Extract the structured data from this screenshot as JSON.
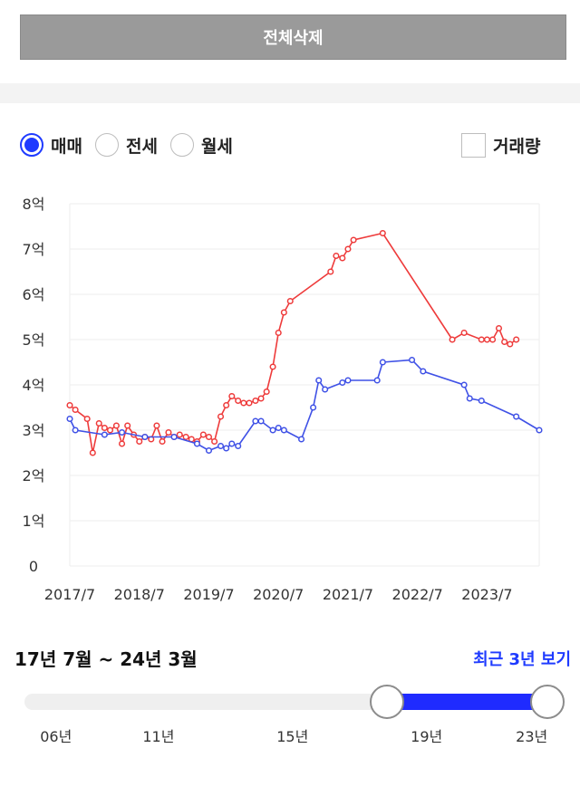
{
  "top": {
    "delete_all_label": "전체삭제"
  },
  "tabs": [
    {
      "label": "매매",
      "selected": true
    },
    {
      "label": "전세",
      "selected": false
    },
    {
      "label": "월세",
      "selected": false
    }
  ],
  "volume_toggle": {
    "label": "거래량",
    "checked": false
  },
  "colors": {
    "sale": "#ee3b3b",
    "jeonse": "#3f51e6",
    "accent": "#1f3bff",
    "grid": "#eeeeee"
  },
  "chart_data": {
    "type": "line",
    "title": "",
    "xlabel": "",
    "ylabel": "",
    "ylim": [
      0,
      8
    ],
    "y_ticks": [
      "0",
      "1억",
      "2억",
      "3억",
      "4억",
      "5억",
      "6억",
      "7억",
      "8억"
    ],
    "xlim": [
      2017.5,
      2024.25
    ],
    "x_ticks": [
      {
        "x": 2017.5,
        "label": "2017/7"
      },
      {
        "x": 2018.5,
        "label": "2018/7"
      },
      {
        "x": 2019.5,
        "label": "2019/7"
      },
      {
        "x": 2020.5,
        "label": "2020/7"
      },
      {
        "x": 2021.5,
        "label": "2021/7"
      },
      {
        "x": 2022.5,
        "label": "2022/7"
      },
      {
        "x": 2023.5,
        "label": "2023/7"
      }
    ],
    "grid": true,
    "series": [
      {
        "key": "sale",
        "points": [
          [
            2017.5,
            3.55
          ],
          [
            2017.58,
            3.45
          ],
          [
            2017.75,
            3.25
          ],
          [
            2017.83,
            2.5
          ],
          [
            2017.92,
            3.15
          ],
          [
            2018.0,
            3.05
          ],
          [
            2018.08,
            3.0
          ],
          [
            2018.17,
            3.1
          ],
          [
            2018.25,
            2.7
          ],
          [
            2018.33,
            3.1
          ],
          [
            2018.42,
            2.9
          ],
          [
            2018.5,
            2.75
          ],
          [
            2018.58,
            2.85
          ],
          [
            2018.67,
            2.8
          ],
          [
            2018.75,
            3.1
          ],
          [
            2018.83,
            2.75
          ],
          [
            2018.92,
            2.95
          ],
          [
            2019.0,
            2.85
          ],
          [
            2019.08,
            2.9
          ],
          [
            2019.17,
            2.85
          ],
          [
            2019.25,
            2.8
          ],
          [
            2019.33,
            2.75
          ],
          [
            2019.42,
            2.9
          ],
          [
            2019.5,
            2.85
          ],
          [
            2019.58,
            2.75
          ],
          [
            2019.67,
            3.3
          ],
          [
            2019.75,
            3.55
          ],
          [
            2019.83,
            3.75
          ],
          [
            2019.92,
            3.65
          ],
          [
            2020.0,
            3.6
          ],
          [
            2020.08,
            3.6
          ],
          [
            2020.17,
            3.65
          ],
          [
            2020.25,
            3.7
          ],
          [
            2020.33,
            3.85
          ],
          [
            2020.42,
            4.4
          ],
          [
            2020.5,
            5.15
          ],
          [
            2020.58,
            5.6
          ],
          [
            2020.67,
            5.85
          ],
          [
            2021.25,
            6.5
          ],
          [
            2021.33,
            6.85
          ],
          [
            2021.42,
            6.8
          ],
          [
            2021.5,
            7.0
          ],
          [
            2021.58,
            7.2
          ],
          [
            2022.0,
            7.35
          ],
          [
            2023.0,
            5.0
          ],
          [
            2023.17,
            5.15
          ],
          [
            2023.42,
            5.0
          ],
          [
            2023.5,
            5.0
          ],
          [
            2023.58,
            5.0
          ],
          [
            2023.67,
            5.25
          ],
          [
            2023.75,
            4.95
          ],
          [
            2023.83,
            4.9
          ],
          [
            2023.92,
            5.0
          ]
        ]
      },
      {
        "key": "jeonse",
        "points": [
          [
            2017.5,
            3.25
          ],
          [
            2017.58,
            3.0
          ],
          [
            2018.0,
            2.9
          ],
          [
            2018.25,
            2.95
          ],
          [
            2018.58,
            2.85
          ],
          [
            2019.0,
            2.85
          ],
          [
            2019.33,
            2.7
          ],
          [
            2019.5,
            2.55
          ],
          [
            2019.67,
            2.65
          ],
          [
            2019.75,
            2.6
          ],
          [
            2019.83,
            2.7
          ],
          [
            2019.92,
            2.65
          ],
          [
            2020.17,
            3.2
          ],
          [
            2020.25,
            3.2
          ],
          [
            2020.42,
            3.0
          ],
          [
            2020.5,
            3.05
          ],
          [
            2020.58,
            3.0
          ],
          [
            2020.83,
            2.8
          ],
          [
            2021.0,
            3.5
          ],
          [
            2021.08,
            4.1
          ],
          [
            2021.17,
            3.9
          ],
          [
            2021.42,
            4.05
          ],
          [
            2021.5,
            4.1
          ],
          [
            2021.92,
            4.1
          ],
          [
            2022.0,
            4.5
          ],
          [
            2022.42,
            4.55
          ],
          [
            2022.58,
            4.3
          ],
          [
            2023.17,
            4.0
          ],
          [
            2023.25,
            3.7
          ],
          [
            2023.42,
            3.65
          ],
          [
            2023.92,
            3.3
          ],
          [
            2024.25,
            3.0
          ]
        ]
      }
    ]
  },
  "range": {
    "label": "17년 7월 ~ 24년 3월",
    "recent_label": "최근 3년 보기"
  },
  "slider": {
    "selected_start": 0.69,
    "selected_end": 1.0,
    "ticks": [
      {
        "label": "06년",
        "pos": 0.06
      },
      {
        "label": "11년",
        "pos": 0.255
      },
      {
        "label": "15년",
        "pos": 0.51
      },
      {
        "label": "19년",
        "pos": 0.765
      },
      {
        "label": "23년",
        "pos": 0.965
      }
    ]
  }
}
